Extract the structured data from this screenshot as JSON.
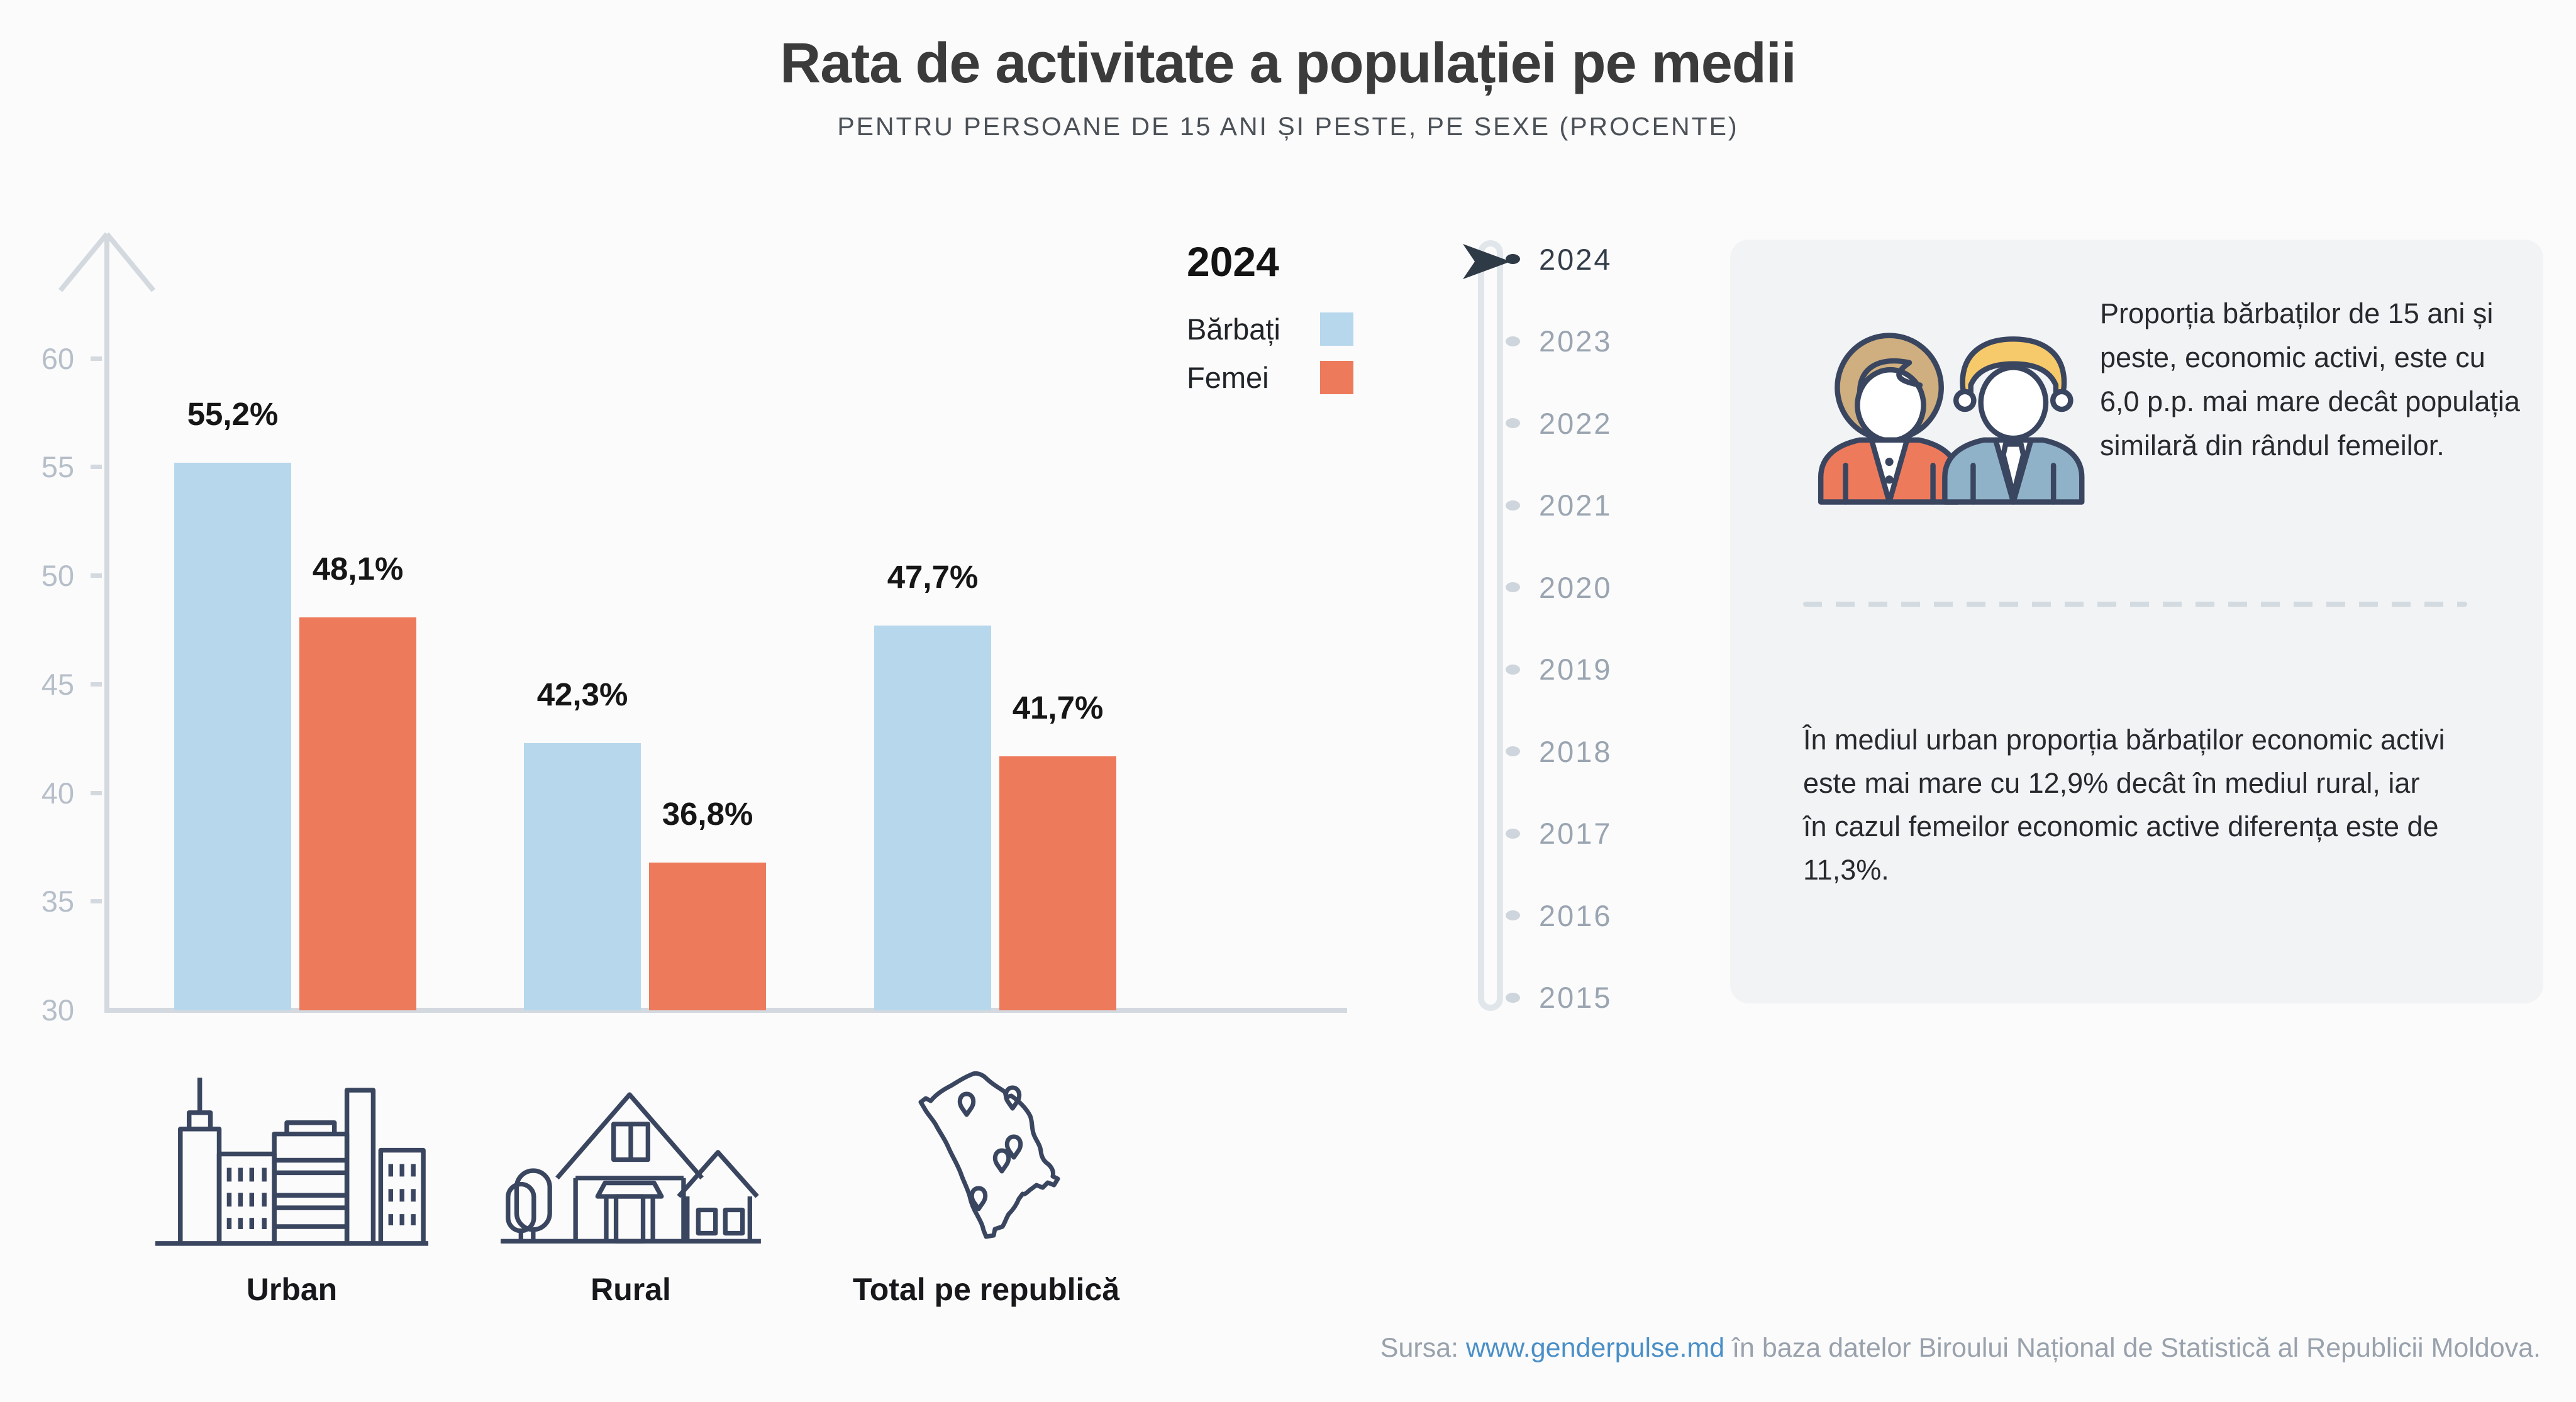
{
  "title": "Rata de activitate a populației pe medii",
  "subtitle": "PENTRU PERSOANE DE 15 ANI ȘI PESTE, PE SEXE (PROCENTE)",
  "legend": {
    "year": "2024"
  },
  "chart_data": {
    "type": "bar",
    "title": "Rata de activitate a populației pe medii",
    "subtitle": "Pentru persoane de 15 ani și peste, pe sexe (procente)",
    "categories": [
      "Urban",
      "Rural",
      "Total pe republică"
    ],
    "series": [
      {
        "name": "Bărbați",
        "color": "#b7d7ec",
        "values": [
          55.2,
          42.3,
          47.7
        ]
      },
      {
        "name": "Femei",
        "color": "#ee7a5c",
        "values": [
          48.1,
          36.8,
          41.7
        ]
      }
    ],
    "value_labels": [
      [
        "55,2%",
        "42,3%",
        "47,7%"
      ],
      [
        "48,1%",
        "36,8%",
        "41,7%"
      ]
    ],
    "baseline": 30,
    "ylim": [
      30,
      63
    ],
    "yticks": [
      60,
      55,
      50,
      45,
      40,
      35,
      30
    ],
    "grid": false,
    "legend_title": "2024",
    "legend_position": "top-right"
  },
  "timeline": {
    "years": [
      "2024",
      "2023",
      "2022",
      "2021",
      "2020",
      "2019",
      "2018",
      "2017",
      "2016",
      "2015"
    ],
    "selected_year": "2024"
  },
  "infocard": {
    "p1": "Proporția bărbaților de 15 ani și peste, economic activi, este cu 6,0 p.p. mai mare decât populația similară din rândul femeilor.",
    "p2": "În mediul urban proporția bărbaților economic activi este mai mare cu 12,9% decât în mediul rural, iar în cazul femeilor economic active diferența este de 11,3%."
  },
  "footer": {
    "source_prefix": "Sursa: ",
    "source_link": "www.genderpulse.md",
    "source_suffix": " în baza datelor Biroului Național de Statistică al Republicii Moldova."
  },
  "colors": {
    "men": "#b7d7ec",
    "women": "#ee7a5c",
    "axis": "#d3d9df",
    "tick_label": "#b6bfc9",
    "selected_year": "#333d49",
    "muted_year": "#9aa5b1",
    "card_background": "#f1f3f5",
    "page_background": "#fbfbfb",
    "icon_outline": "#3a4660",
    "link": "#4a8fc7",
    "woman_hair": "#cfae7f",
    "man_hair": "#f6c96b",
    "man_jacket": "#8fb2c9"
  },
  "icons": {
    "categories": [
      "city-icon",
      "house-icon",
      "moldova-map-icon"
    ],
    "card": "man-and-woman-icon",
    "timeline_cursor": "cursor-arrow-icon"
  }
}
